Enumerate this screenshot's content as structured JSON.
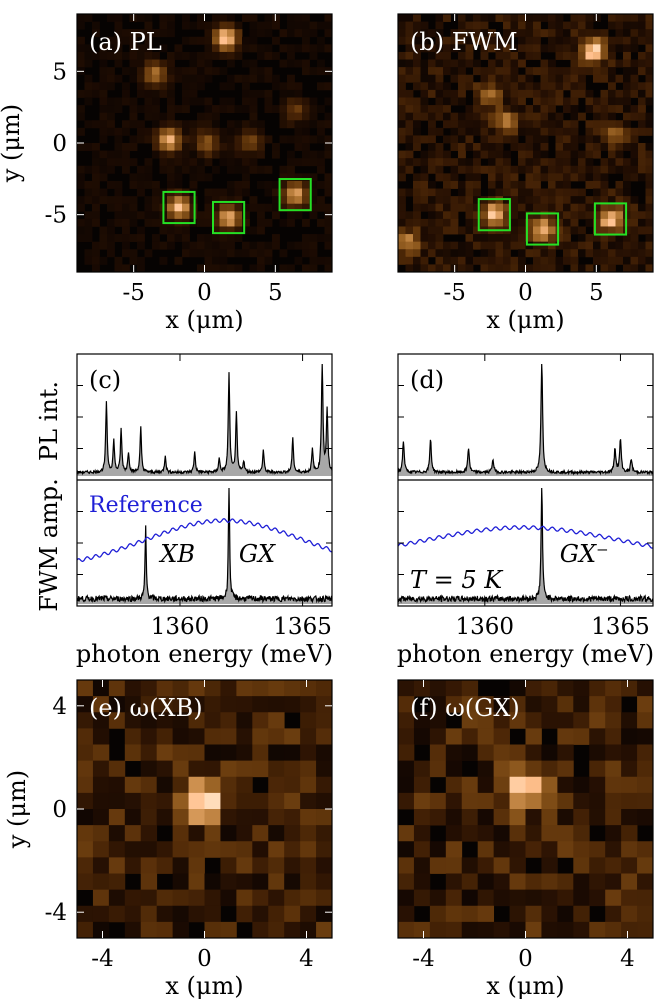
{
  "colors": {
    "map_hot": "#ffb45c",
    "box": "#25e025",
    "spectrum": "#000000",
    "fill": "#a8a8a8",
    "reference": "#1f1fd6"
  },
  "chart_data": [
    {
      "id": "a",
      "type": "heatmap",
      "panel_label": "(a)  PL",
      "xlabel": "x (μm)",
      "ylabel": "y (μm)",
      "xlim": [
        -9,
        9
      ],
      "ylim": [
        -9,
        9
      ],
      "xticks": [
        "-5",
        "0",
        "5"
      ],
      "yticks": [
        "5",
        "0",
        "-5"
      ],
      "xtick_values": [
        -5,
        0,
        5
      ],
      "ytick_values": [
        5,
        0,
        -5
      ],
      "spots": [
        {
          "x": 1.5,
          "y": 7.3,
          "i": 0.95
        },
        {
          "x": -3.5,
          "y": 4.8,
          "i": 0.55
        },
        {
          "x": -2.5,
          "y": 0.2,
          "i": 0.8
        },
        {
          "x": 0.2,
          "y": 0.0,
          "i": 0.45
        },
        {
          "x": 3.2,
          "y": 0.1,
          "i": 0.35
        },
        {
          "x": 6.5,
          "y": 2.3,
          "i": 0.3
        },
        {
          "x": -1.8,
          "y": -4.5,
          "i": 0.85
        },
        {
          "x": 1.7,
          "y": -5.2,
          "i": 0.8
        },
        {
          "x": 6.4,
          "y": -3.6,
          "i": 0.75
        }
      ],
      "boxes": [
        {
          "x": -1.8,
          "y": -4.5
        },
        {
          "x": 1.7,
          "y": -5.2
        },
        {
          "x": 6.4,
          "y": -3.6
        }
      ]
    },
    {
      "id": "b",
      "type": "heatmap",
      "panel_label": "(b)  FWM",
      "xlabel": "x (μm)",
      "ylabel": "",
      "xlim": [
        -9,
        9
      ],
      "ylim": [
        -9,
        9
      ],
      "xticks": [
        "-5",
        "0",
        "5"
      ],
      "yticks": [],
      "xtick_values": [
        -5,
        0,
        5
      ],
      "ytick_values": [],
      "spots": [
        {
          "x": 4.8,
          "y": 6.4,
          "i": 0.95
        },
        {
          "x": -2.6,
          "y": 3.4,
          "i": 0.45
        },
        {
          "x": -1.5,
          "y": 1.5,
          "i": 0.5
        },
        {
          "x": -2.2,
          "y": -5.0,
          "i": 0.8
        },
        {
          "x": 1.2,
          "y": -6.0,
          "i": 0.8
        },
        {
          "x": 6.0,
          "y": -5.3,
          "i": 0.85
        },
        {
          "x": -8.3,
          "y": -6.9,
          "i": 0.55
        },
        {
          "x": 6.2,
          "y": 0.6,
          "i": 0.4
        }
      ],
      "boxes": [
        {
          "x": -2.2,
          "y": -5.0
        },
        {
          "x": 1.2,
          "y": -6.0
        },
        {
          "x": 6.0,
          "y": -5.3
        }
      ]
    },
    {
      "id": "c",
      "type": "line",
      "panel_label": "(c)",
      "xlabel": "photon energy (meV)",
      "ylabel_top": "PL int.",
      "ylabel_bottom": "FWM amp.",
      "xlim": [
        1355.8,
        1366.2
      ],
      "xticks": [
        "1360",
        "1365"
      ],
      "xtick_values": [
        1360,
        1365
      ],
      "pl_peaks": [
        {
          "x": 1357.0,
          "h": 0.62
        },
        {
          "x": 1357.3,
          "h": 0.28
        },
        {
          "x": 1357.6,
          "h": 0.38
        },
        {
          "x": 1357.9,
          "h": 0.18
        },
        {
          "x": 1358.4,
          "h": 0.4
        },
        {
          "x": 1359.4,
          "h": 0.15
        },
        {
          "x": 1360.6,
          "h": 0.18
        },
        {
          "x": 1361.6,
          "h": 0.12
        },
        {
          "x": 1362.0,
          "h": 0.88
        },
        {
          "x": 1362.3,
          "h": 0.52
        },
        {
          "x": 1362.6,
          "h": 0.1
        },
        {
          "x": 1363.4,
          "h": 0.2
        },
        {
          "x": 1364.6,
          "h": 0.3
        },
        {
          "x": 1365.4,
          "h": 0.2
        },
        {
          "x": 1365.8,
          "h": 1.0
        },
        {
          "x": 1366.0,
          "h": 0.55
        }
      ],
      "fwm_peaks": [
        {
          "x": 1358.6,
          "h": 0.62
        },
        {
          "x": 1362.0,
          "h": 0.98
        }
      ],
      "reference": {
        "name": "Reference",
        "center": 1361.8,
        "width": 3.2,
        "base": 0.3,
        "amp": 0.42
      },
      "annotations": [
        "XB",
        "GX"
      ]
    },
    {
      "id": "d",
      "type": "line",
      "panel_label": "(d)",
      "xlabel": "photon energy (meV)",
      "xlim": [
        1356.8,
        1366.2
      ],
      "xticks": [
        "1360",
        "1365"
      ],
      "xtick_values": [
        1360,
        1365
      ],
      "pl_peaks": [
        {
          "x": 1357.0,
          "h": 0.28
        },
        {
          "x": 1358.0,
          "h": 0.3
        },
        {
          "x": 1359.4,
          "h": 0.22
        },
        {
          "x": 1360.3,
          "h": 0.12
        },
        {
          "x": 1362.1,
          "h": 0.98
        },
        {
          "x": 1364.8,
          "h": 0.22
        },
        {
          "x": 1365.0,
          "h": 0.3
        },
        {
          "x": 1365.4,
          "h": 0.12
        }
      ],
      "fwm_peaks": [
        {
          "x": 1362.1,
          "h": 0.98
        }
      ],
      "reference": {
        "name": "",
        "center": 1361.4,
        "width": 3.6,
        "base": 0.38,
        "amp": 0.28
      },
      "annotations": [
        "T = 5 K",
        "GX⁻"
      ]
    },
    {
      "id": "e",
      "type": "heatmap",
      "panel_label": "(e)  ω(XB)",
      "xlabel": "x (μm)",
      "ylabel": "y (μm)",
      "xlim": [
        -5,
        5
      ],
      "ylim": [
        -5,
        5
      ],
      "xticks": [
        "-4",
        "0",
        "4"
      ],
      "yticks": [
        "4",
        "0",
        "-4"
      ],
      "xtick_values": [
        -4,
        0,
        4
      ],
      "ytick_values": [
        4,
        0,
        -4
      ],
      "spots": [
        {
          "x": 0.0,
          "y": 0.3,
          "i": 1.0
        }
      ]
    },
    {
      "id": "f",
      "type": "heatmap",
      "panel_label": "(f)  ω(GX)",
      "xlabel": "x (μm)",
      "ylabel": "",
      "xlim": [
        -5,
        5
      ],
      "ylim": [
        -5,
        5
      ],
      "xticks": [
        "-4",
        "0",
        "4"
      ],
      "yticks": [],
      "xtick_values": [
        -4,
        0,
        4
      ],
      "ytick_values": [],
      "spots": [
        {
          "x": -0.1,
          "y": 0.8,
          "i": 1.0
        }
      ]
    }
  ]
}
